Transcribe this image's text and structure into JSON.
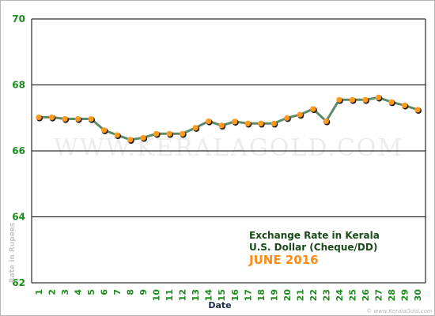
{
  "chart_data": {
    "type": "line",
    "title": "Exchange Rate in Kerala",
    "subtitle": "U.S. Dollar (Cheque/DD)",
    "period": "JUNE 2016",
    "xlabel": "Date",
    "ylabel": "Rate in Rupees",
    "ylim": [
      62,
      70
    ],
    "yticks": [
      62,
      64,
      66,
      68,
      70
    ],
    "grid": true,
    "legend": "none",
    "x": [
      1,
      2,
      3,
      4,
      5,
      6,
      7,
      8,
      9,
      10,
      11,
      12,
      13,
      14,
      15,
      16,
      17,
      18,
      19,
      20,
      21,
      22,
      23,
      24,
      25,
      26,
      27,
      28,
      29,
      30
    ],
    "values": [
      67.02,
      67.02,
      66.97,
      66.97,
      66.97,
      66.63,
      66.48,
      66.34,
      66.4,
      66.52,
      66.52,
      66.52,
      66.7,
      66.9,
      66.77,
      66.89,
      66.83,
      66.83,
      66.83,
      67.0,
      67.1,
      67.27,
      66.9,
      67.55,
      67.55,
      67.55,
      67.62,
      67.48,
      67.38,
      67.25
    ]
  },
  "watermark": "WWW.KERALAGOLD.COM",
  "credit": "© www.KeralaGold.com",
  "colors": {
    "line": "#5f8a6a",
    "marker": "#ff9a1f",
    "grid": "#000000",
    "ytick": "#1f8a1f",
    "title": "#1a4a1a",
    "period": "#ff8c1a"
  }
}
